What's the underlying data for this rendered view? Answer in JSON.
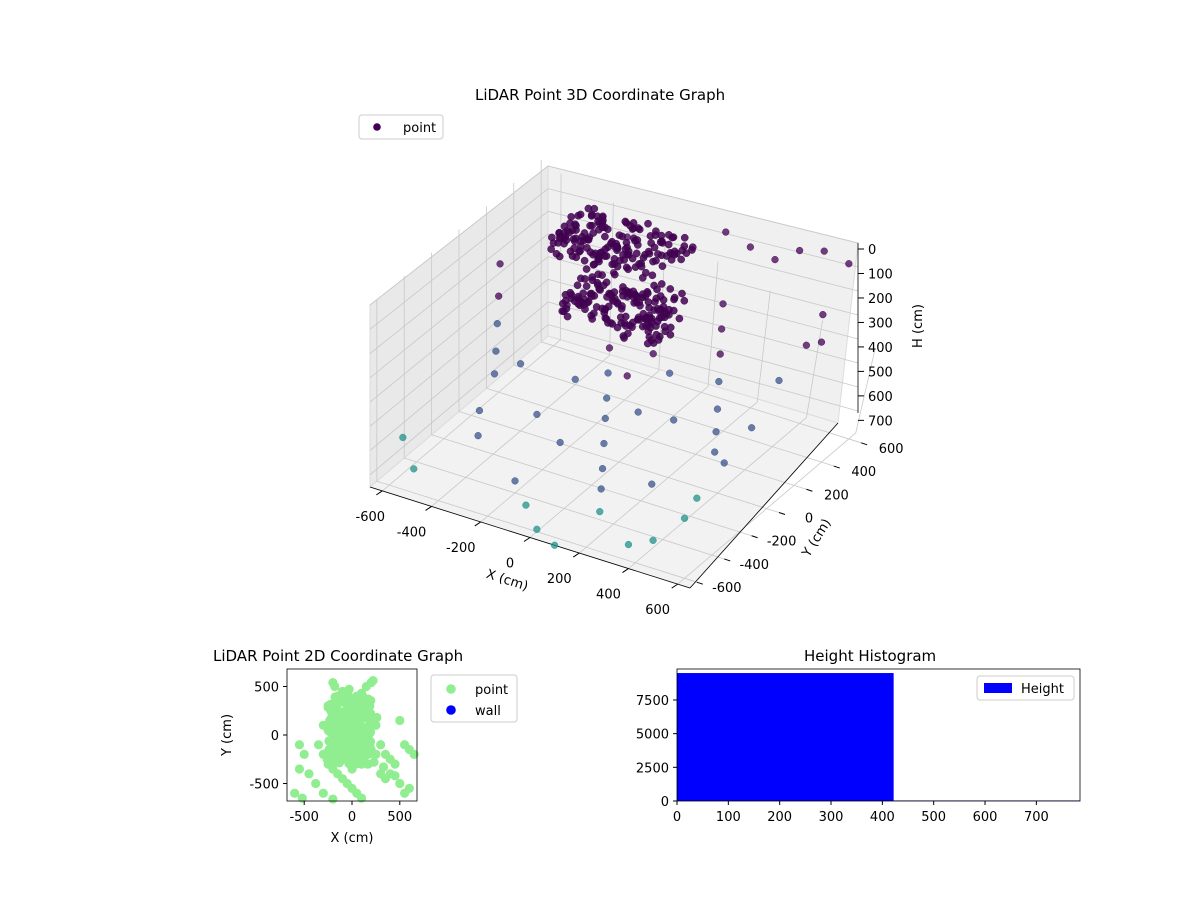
{
  "chart_data": [
    {
      "id": "scatter3d",
      "type": "scatter",
      "title": "LiDAR Point 3D Coordinate Graph",
      "xlabel": "X (cm)",
      "ylabel": "Y (cm)",
      "zlabel": "H (cm)",
      "xlim": [
        -650,
        650
      ],
      "ylim": [
        -650,
        650
      ],
      "zlim": [
        750,
        0
      ],
      "xticks": [
        "-600",
        "-400",
        "-200",
        "0",
        "200",
        "400",
        "600"
      ],
      "yticks": [
        "-600",
        "-400",
        "-200",
        "0",
        "200",
        "400",
        "600"
      ],
      "zticks": [
        "0",
        "100",
        "200",
        "300",
        "400",
        "500",
        "600",
        "700"
      ],
      "grid": true,
      "legend": {
        "position": "top-left",
        "entries": [
          {
            "label": "point",
            "color": "#440154"
          }
        ]
      },
      "series": [
        {
          "name": "point",
          "dense_clusters": [
            {
              "x_range": [
                -400,
                50
              ],
              "y_range": [
                150,
                500
              ],
              "h_range": [
                30,
                80
              ]
            },
            {
              "x_range": [
                -250,
                150
              ],
              "y_range": [
                -20,
                260
              ],
              "h_range": [
                120,
                230
              ]
            }
          ],
          "points": [
            [
              -650,
              300,
              280
            ],
            [
              -600,
              200,
              350
            ],
            [
              -550,
              100,
              400
            ],
            [
              -500,
              0,
              450
            ],
            [
              -450,
              -100,
              480
            ],
            [
              -400,
              -300,
              520
            ],
            [
              -350,
              -400,
              560
            ],
            [
              -300,
              500,
              300
            ],
            [
              -250,
              400,
              350
            ],
            [
              -200,
              300,
              380
            ],
            [
              -150,
              200,
              420
            ],
            [
              -100,
              100,
              460
            ],
            [
              -50,
              0,
              500
            ],
            [
              0,
              -100,
              520
            ],
            [
              50,
              -200,
              560
            ],
            [
              100,
              -300,
              600
            ],
            [
              150,
              -400,
              620
            ],
            [
              200,
              -500,
              650
            ],
            [
              250,
              300,
              260
            ],
            [
              300,
              200,
              300
            ],
            [
              350,
              100,
              350
            ],
            [
              400,
              0,
              400
            ],
            [
              450,
              -100,
              430
            ],
            [
              500,
              -200,
              450
            ],
            [
              550,
              500,
              200
            ],
            [
              600,
              400,
              250
            ],
            [
              -600,
              -500,
              600
            ],
            [
              -500,
              -600,
              650
            ],
            [
              -400,
              600,
              150
            ],
            [
              -300,
              600,
              200
            ],
            [
              100,
              600,
              50
            ],
            [
              200,
              600,
              80
            ],
            [
              300,
              600,
              100
            ],
            [
              400,
              600,
              30
            ],
            [
              500,
              600,
              0
            ],
            [
              600,
              600,
              20
            ],
            [
              650,
              200,
              150
            ],
            [
              650,
              0,
              200
            ],
            [
              650,
              -200,
              300
            ],
            [
              650,
              -400,
              350
            ],
            [
              650,
              -600,
              400
            ],
            [
              600,
              -600,
              500
            ],
            [
              500,
              -650,
              600
            ],
            [
              400,
              -650,
              650
            ],
            [
              -200,
              -400,
              700
            ],
            [
              -100,
              -500,
              720
            ],
            [
              0,
              -600,
              740
            ],
            [
              100,
              -650,
              750
            ],
            [
              50,
              50,
              550
            ],
            [
              -50,
              150,
              480
            ],
            [
              0,
              250,
              420
            ],
            [
              150,
              100,
              380
            ],
            [
              -150,
              -50,
              430
            ],
            [
              250,
              -50,
              470
            ],
            [
              -350,
              250,
              330
            ],
            [
              -250,
              -150,
              560
            ],
            [
              300,
              -300,
              600
            ],
            [
              -100,
              -250,
              580
            ],
            [
              200,
              400,
              220
            ],
            [
              -400,
              0,
              470
            ]
          ]
        }
      ],
      "colormap": [
        "#440154",
        "#3b528b",
        "#21918c",
        "#5ec962"
      ]
    },
    {
      "id": "scatter2d",
      "type": "scatter",
      "title": "LiDAR Point 2D Coordinate Graph",
      "xlabel": "X (cm)",
      "ylabel": "Y (cm)",
      "xlim": [
        -680,
        680
      ],
      "ylim": [
        -680,
        680
      ],
      "xticks": [
        "-500",
        "0",
        "500"
      ],
      "yticks": [
        "-500",
        "0",
        "500"
      ],
      "grid": false,
      "legend": {
        "position": "right-outside",
        "entries": [
          {
            "label": "point",
            "color": "#90ee90"
          },
          {
            "label": "wall",
            "color": "#0000ff"
          }
        ]
      },
      "series": [
        {
          "name": "point",
          "color": "#90ee90",
          "points": [
            [
              -200,
              540
            ],
            [
              -180,
              500
            ],
            [
              -100,
              450
            ],
            [
              -50,
              420
            ],
            [
              0,
              380
            ],
            [
              50,
              400
            ],
            [
              100,
              430
            ],
            [
              150,
              500
            ],
            [
              200,
              540
            ],
            [
              220,
              560
            ],
            [
              -250,
              300
            ],
            [
              -200,
              250
            ],
            [
              -150,
              200
            ],
            [
              -100,
              150
            ],
            [
              -50,
              100
            ],
            [
              0,
              50
            ],
            [
              50,
              0
            ],
            [
              100,
              -50
            ],
            [
              150,
              -100
            ],
            [
              200,
              -150
            ],
            [
              250,
              -200
            ],
            [
              -300,
              100
            ],
            [
              -250,
              50
            ],
            [
              -200,
              0
            ],
            [
              -150,
              -50
            ],
            [
              -100,
              -100
            ],
            [
              -50,
              -150
            ],
            [
              0,
              -200
            ],
            [
              50,
              -250
            ],
            [
              100,
              -300
            ],
            [
              -350,
              -100
            ],
            [
              -300,
              -200
            ],
            [
              -250,
              -300
            ],
            [
              -200,
              -350
            ],
            [
              -150,
              -400
            ],
            [
              -100,
              -450
            ],
            [
              -50,
              -500
            ],
            [
              0,
              -550
            ],
            [
              50,
              -600
            ],
            [
              100,
              -650
            ],
            [
              -550,
              -100
            ],
            [
              -500,
              -200
            ],
            [
              -550,
              -350
            ],
            [
              -600,
              -600
            ],
            [
              -520,
              -650
            ],
            [
              -450,
              -400
            ],
            [
              -380,
              -500
            ],
            [
              -300,
              -600
            ],
            [
              -200,
              -660
            ],
            [
              300,
              -400
            ],
            [
              350,
              -450
            ],
            [
              400,
              -400
            ],
            [
              450,
              -420
            ],
            [
              500,
              -500
            ],
            [
              550,
              -600
            ],
            [
              600,
              -550
            ],
            [
              500,
              150
            ],
            [
              550,
              -100
            ],
            [
              600,
              -150
            ],
            [
              650,
              -200
            ],
            [
              400,
              -250
            ],
            [
              450,
              -300
            ],
            [
              300,
              -100
            ],
            [
              350,
              -200
            ],
            [
              250,
              100
            ],
            [
              200,
              200
            ],
            [
              150,
              250
            ],
            [
              100,
              300
            ],
            [
              50,
              250
            ],
            [
              -50,
              300
            ],
            [
              -100,
              350
            ],
            [
              -150,
              400
            ],
            [
              0,
              150
            ],
            [
              -20,
              200
            ],
            [
              30,
              100
            ],
            [
              -80,
              50
            ],
            [
              80,
              80
            ],
            [
              -120,
              -200
            ],
            [
              120,
              -200
            ],
            [
              0,
              -350
            ],
            [
              -60,
              -80
            ],
            [
              60,
              -30
            ],
            [
              180,
              30
            ],
            [
              -200,
              120
            ],
            [
              230,
              -280
            ],
            [
              -260,
              -250
            ],
            [
              330,
              -330
            ],
            [
              -30,
              470
            ],
            [
              20,
              330
            ],
            [
              140,
              350
            ],
            [
              -180,
              300
            ],
            [
              260,
              180
            ]
          ]
        },
        {
          "name": "wall",
          "color": "#0000ff",
          "points": []
        }
      ]
    },
    {
      "id": "histogram",
      "type": "bar",
      "title": "Height Histogram",
      "xlabel": "",
      "ylabel": "",
      "xlim": [
        0,
        785
      ],
      "ylim": [
        0,
        9800
      ],
      "xticks": [
        "0",
        "100",
        "200",
        "300",
        "400",
        "500",
        "600",
        "700"
      ],
      "yticks": [
        "0",
        "2500",
        "5000",
        "7500"
      ],
      "grid": false,
      "legend": {
        "position": "top-right",
        "entries": [
          {
            "label": "Height",
            "color": "#0000ff"
          }
        ]
      },
      "series": [
        {
          "name": "Height",
          "color": "#0000ff",
          "bins": [
            {
              "x0": 0,
              "x1": 422,
              "value": 9500
            },
            {
              "x0": 422,
              "x1": 785,
              "value": 40
            }
          ]
        }
      ]
    }
  ]
}
